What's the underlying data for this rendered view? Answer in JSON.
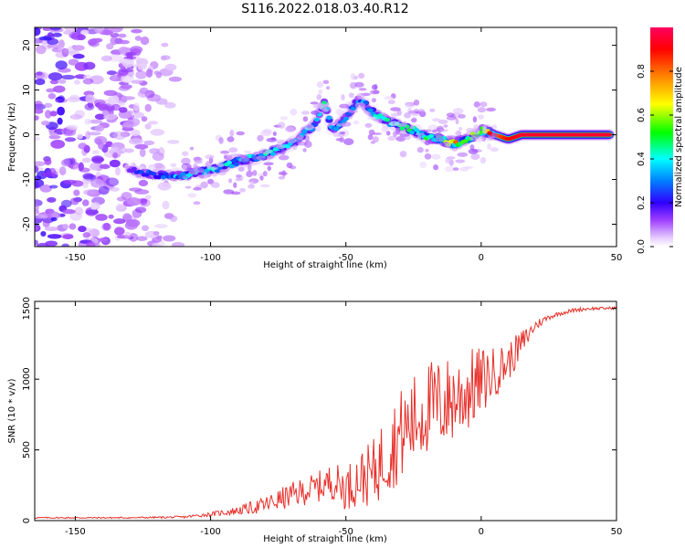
{
  "figure": {
    "title": "S116.2022.018.03.40.R12"
  },
  "chart_data": [
    {
      "type": "heatmap",
      "xlabel": "Height of straight line (km)",
      "ylabel": "Frequency (Hz)",
      "xlim": [
        -165,
        50
      ],
      "ylim": [
        -25,
        24
      ],
      "xticks": [
        -150,
        -100,
        -50,
        0,
        50
      ],
      "yticks": [
        -20,
        -10,
        0,
        10,
        20
      ],
      "colorbar": {
        "label": "Normalized spectral amplitude",
        "range": [
          0,
          1
        ],
        "ticks": [
          0.0,
          0.2,
          0.4,
          0.6,
          0.8
        ],
        "tick_labels": [
          "0.0",
          "0.2",
          "0.4",
          "0.6",
          "0.8"
        ],
        "colormap": "rainbow"
      },
      "ridge": {
        "x": [
          -130,
          -120,
          -110,
          -100,
          -90,
          -80,
          -70,
          -62,
          -58,
          -55,
          -50,
          -45,
          -40,
          -35,
          -30,
          -25,
          -20,
          -15,
          -10,
          -5,
          0,
          5,
          10,
          15,
          20,
          30,
          40,
          48
        ],
        "y": [
          -8,
          -9,
          -9,
          -8,
          -6,
          -4.5,
          -2,
          2,
          7,
          1,
          4,
          8,
          5,
          3,
          2,
          1,
          -0.5,
          -1,
          -2,
          -1,
          1,
          0,
          -1,
          0,
          0,
          0,
          0,
          0
        ],
        "amplitude": [
          0.2,
          0.25,
          0.35,
          0.4,
          0.35,
          0.4,
          0.35,
          0.3,
          0.4,
          0.35,
          0.3,
          0.3,
          0.35,
          0.4,
          0.4,
          0.45,
          0.45,
          0.55,
          0.7,
          0.5,
          0.7,
          0.8,
          0.9,
          0.95,
          0.95,
          0.95,
          0.95,
          0.95
        ]
      },
      "noise_region": {
        "x": [
          -165,
          -110
        ],
        "y": [
          -25,
          24
        ]
      }
    },
    {
      "type": "line",
      "xlabel": "Height of straight line (km)",
      "ylabel": "SNR (10 * v/v)",
      "xlim": [
        -165,
        50
      ],
      "ylim": [
        0,
        1550
      ],
      "xticks": [
        -150,
        -100,
        -50,
        0,
        50
      ],
      "yticks": [
        0,
        500,
        1000,
        1500
      ],
      "series": [
        {
          "color": "#e8302a",
          "x": [
            -165,
            -150,
            -130,
            -110,
            -100,
            -90,
            -80,
            -70,
            -60,
            -55,
            -50,
            -45,
            -40,
            -35,
            -30,
            -25,
            -20,
            -15,
            -10,
            -5,
            0,
            5,
            10,
            15,
            20,
            25,
            30,
            35,
            40,
            45,
            50
          ],
          "y": [
            20,
            20,
            20,
            25,
            45,
            70,
            110,
            180,
            240,
            280,
            230,
            300,
            330,
            480,
            600,
            700,
            800,
            820,
            860,
            920,
            980,
            1050,
            1120,
            1250,
            1380,
            1440,
            1470,
            1490,
            1500,
            1500,
            1505
          ],
          "noise": [
            5,
            5,
            5,
            8,
            15,
            30,
            60,
            90,
            110,
            130,
            160,
            190,
            240,
            300,
            330,
            340,
            340,
            330,
            320,
            300,
            250,
            180,
            140,
            100,
            40,
            20,
            15,
            15,
            12,
            10,
            10
          ]
        }
      ]
    }
  ]
}
